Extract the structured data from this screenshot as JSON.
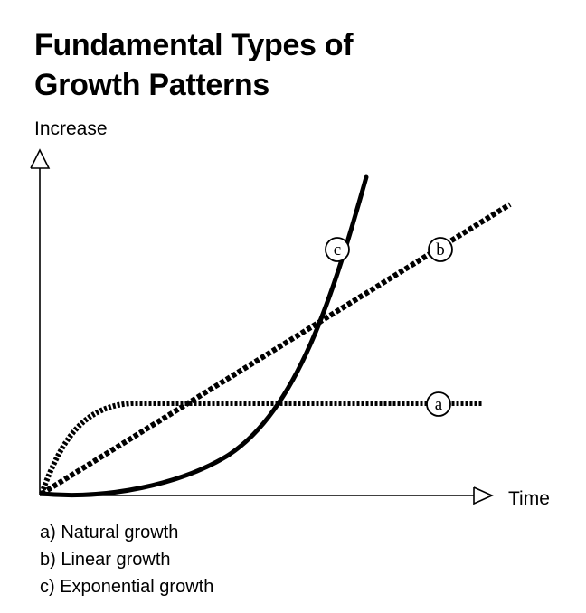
{
  "title_lines": [
    "Fundamental Types of",
    "Growth Patterns"
  ],
  "axes": {
    "y_label": "Increase",
    "x_label": "Time"
  },
  "curves": [
    {
      "id": "a",
      "marker": "a",
      "label": "a) Natural growth",
      "style": "dotted"
    },
    {
      "id": "b",
      "marker": "b",
      "label": "b) Linear growth",
      "style": "dashed"
    },
    {
      "id": "c",
      "marker": "c",
      "label": "c) Exponential growth",
      "style": "solid"
    }
  ],
  "colors": {
    "ink": "#000000",
    "background": "#ffffff"
  }
}
